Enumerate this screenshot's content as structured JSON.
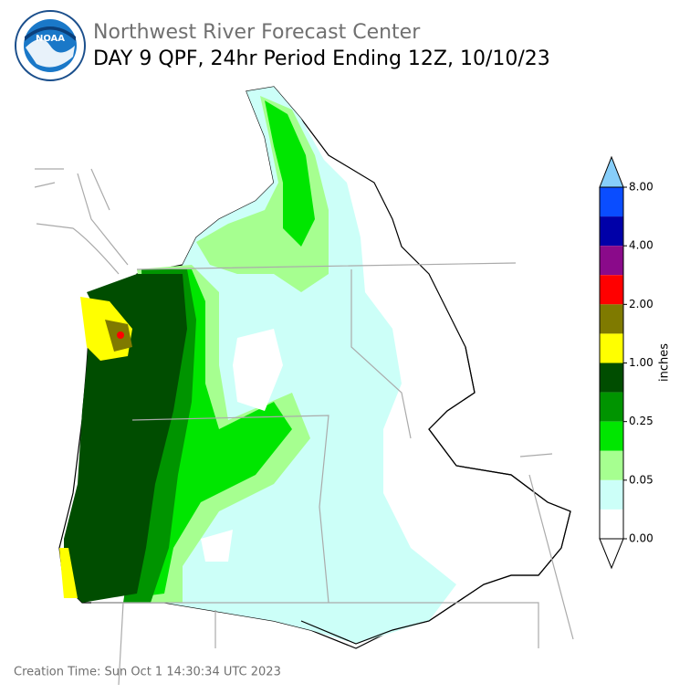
{
  "header": {
    "agency": "Northwest River Forecast Center",
    "title": "DAY 9 QPF, 24hr Period Ending 12Z, 10/10/23"
  },
  "legend": {
    "label": "inches",
    "ticks": [
      "8.00",
      "4.00",
      "2.00",
      "1.00",
      "0.25",
      "0.05",
      "0.00"
    ],
    "colors": [
      "#0a4dff",
      "#0000a8",
      "#8a0a8a",
      "#ff0000",
      "#7f7a00",
      "#ffff00",
      "#004d00",
      "#009400",
      "#00e600",
      "#a6ff90",
      "#ccfff8",
      "#ffffff"
    ],
    "over_color": "#87cefa",
    "under_color": "#ffffff"
  },
  "footer": {
    "creation": "Creation Time: Sun Oct 1 14:30:34 UTC 2023"
  }
}
